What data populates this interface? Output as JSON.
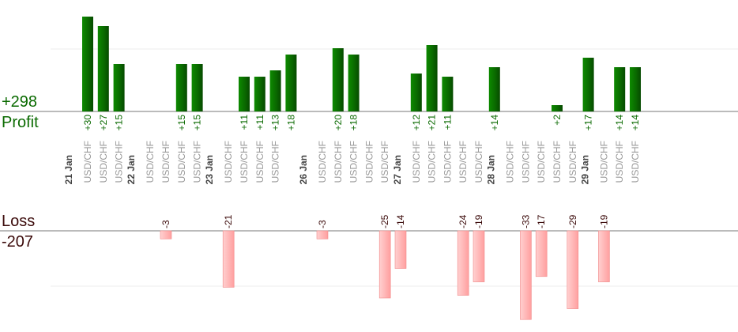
{
  "summary": {
    "profit_total": "+298",
    "profit_label": "Profit",
    "loss_label": "Loss",
    "loss_total": "-207"
  },
  "colors": {
    "profit_bar": "#0a6a00",
    "loss_bar": "#ffb4b4",
    "profit_text": "#0a6a00",
    "loss_text": "#3b0a0a",
    "axis_text": "#999999",
    "date_text": "#444444"
  },
  "chart_data": {
    "type": "bar",
    "title": "",
    "symbol": "USD/CHF",
    "x": [
      "21 Jan",
      "",
      "",
      "",
      "22 Jan",
      "",
      "",
      "",
      "",
      "23 Jan",
      "",
      "",
      "",
      "",
      "",
      "26 Jan",
      "",
      "",
      "",
      "",
      "",
      "27 Jan",
      "",
      "",
      "",
      "",
      "",
      "28 Jan",
      "",
      "",
      "",
      "",
      "",
      "29 Jan",
      "",
      ""
    ],
    "categories": [
      "USD/CHF",
      "USD/CHF",
      "USD/CHF",
      "",
      "USD/CHF",
      "USD/CHF",
      "USD/CHF",
      "USD/CHF",
      "",
      "USD/CHF",
      "USD/CHF",
      "USD/CHF",
      "USD/CHF",
      "",
      "",
      "USD/CHF",
      "USD/CHF",
      "USD/CHF",
      "USD/CHF",
      "USD/CHF",
      "",
      "USD/CHF",
      "USD/CHF",
      "USD/CHF",
      "USD/CHF",
      "USD/CHF",
      "",
      "USD/CHF",
      "USD/CHF",
      "USD/CHF",
      "USD/CHF",
      "USD/CHF",
      "",
      "USD/CHF",
      "USD/CHF",
      "USD/CHF"
    ],
    "series": [
      {
        "values": [
          30,
          27,
          15,
          null,
          null,
          -3,
          15,
          15,
          null,
          -21,
          11,
          11,
          13,
          18,
          null,
          -3,
          20,
          18,
          null,
          -25,
          -14,
          12,
          21,
          11,
          -24,
          -19,
          14,
          null,
          -33,
          -17,
          2,
          -29,
          17,
          -19,
          14,
          14
        ]
      }
    ],
    "profit_ylim": [
      0,
      20
    ],
    "loss_ylim": [
      -33,
      0
    ],
    "grid": true
  }
}
